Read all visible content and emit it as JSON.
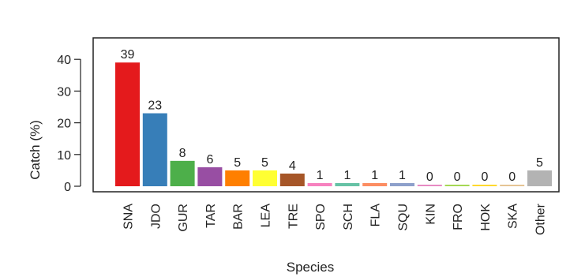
{
  "chart_data": {
    "type": "bar",
    "categories": [
      "SNA",
      "JDO",
      "GUR",
      "TAR",
      "BAR",
      "LEA",
      "TRE",
      "SPO",
      "SCH",
      "FLA",
      "SQU",
      "KIN",
      "FRO",
      "HOK",
      "SKA",
      "Other"
    ],
    "values": [
      39,
      23,
      8,
      6,
      5,
      5,
      4,
      1,
      1,
      1,
      1,
      0,
      0,
      0,
      0,
      5
    ],
    "value_labels": [
      "39",
      "23",
      "8",
      "6",
      "5",
      "5",
      "4",
      "1",
      "1",
      "1",
      "1",
      "0",
      "0",
      "0",
      "0",
      "5"
    ],
    "colors": [
      "#e41a1c",
      "#377eb8",
      "#4daf4a",
      "#984ea3",
      "#ff7f00",
      "#ffff33",
      "#a65628",
      "#f781bf",
      "#66c2a5",
      "#fc8d62",
      "#8da0cb",
      "#e78ac3",
      "#a6d854",
      "#ffd92f",
      "#e5c494",
      "#b3b3b3"
    ],
    "xlabel": "Species",
    "ylabel": "Catch (%)",
    "yticks": [
      "0",
      "10",
      "20",
      "30",
      "40"
    ],
    "ylim": [
      0,
      45
    ],
    "grid": false,
    "legend": "none"
  }
}
